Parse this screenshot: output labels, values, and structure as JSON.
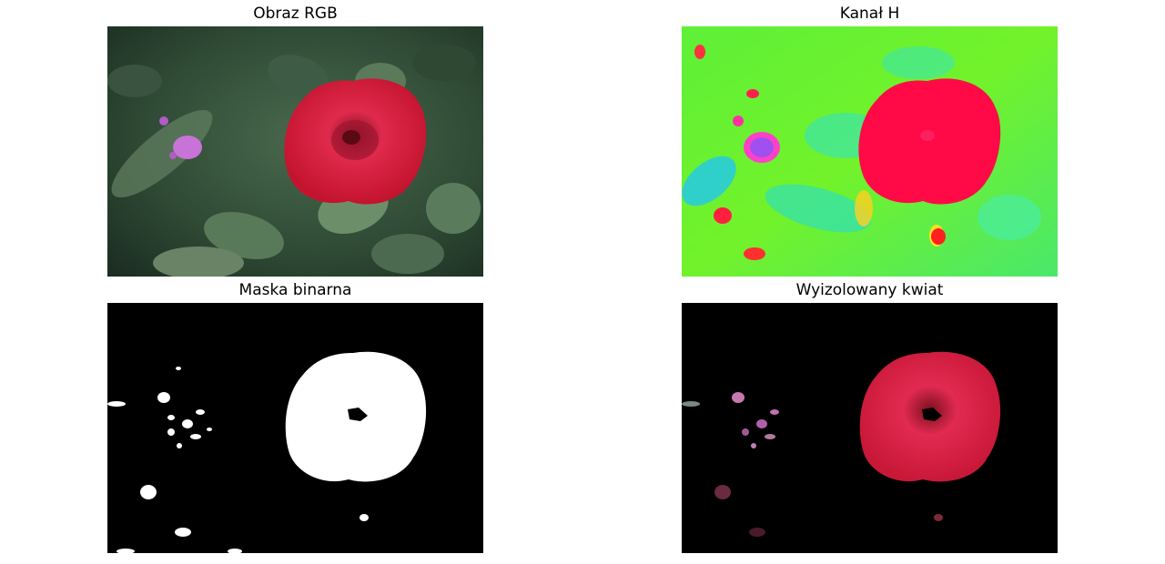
{
  "figure": {
    "panels": [
      {
        "title": "Obraz RGB",
        "kind": "rgb-photo"
      },
      {
        "title": "Kanał H",
        "kind": "hue-channel"
      },
      {
        "title": "Maska binarna",
        "kind": "binary-mask"
      },
      {
        "title": "Wyizolowany kwiat",
        "kind": "isolated-flower"
      }
    ]
  },
  "colors": {
    "background": "#ffffff",
    "rose_red": "#d81a3c",
    "hue_green": "#6cf02a",
    "hue_red": "#ff0040",
    "mask_white": "#ffffff",
    "mask_black": "#000000"
  }
}
